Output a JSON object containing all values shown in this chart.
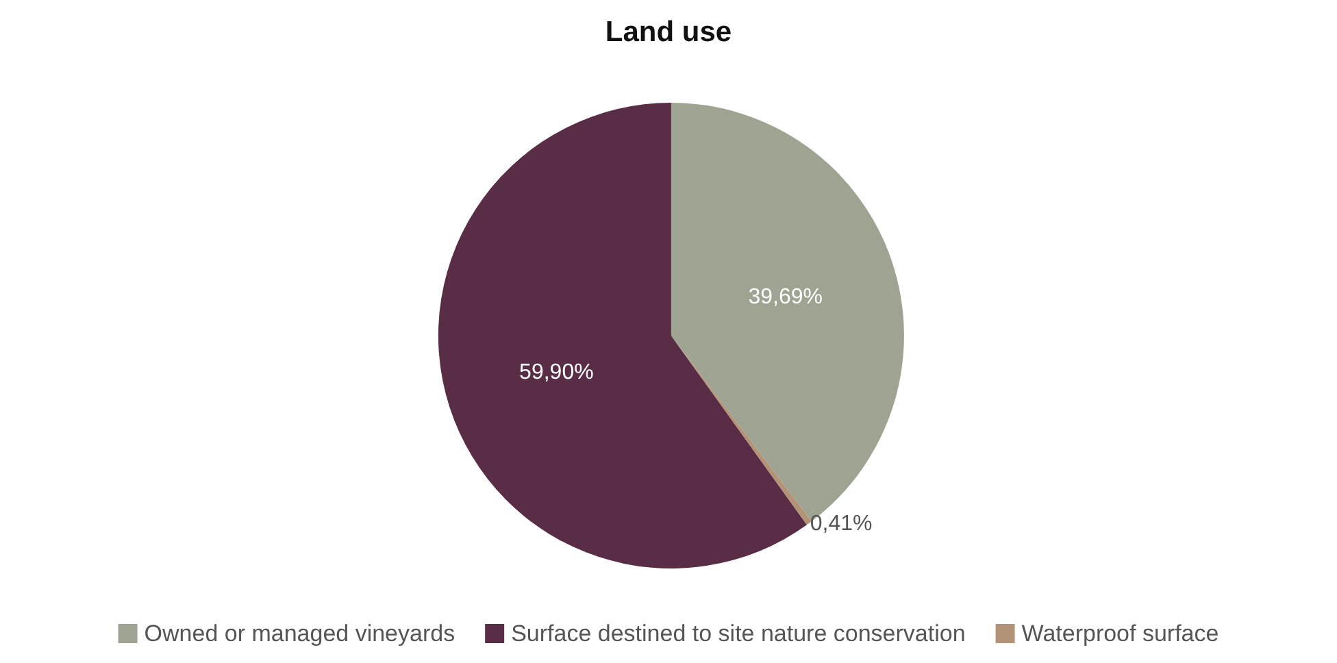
{
  "chart_data": {
    "type": "pie",
    "title": "Land use",
    "categories": [
      "Owned or managed vineyards",
      "Surface destined to site nature conservation",
      "Waterproof surface"
    ],
    "values": [
      39.69,
      59.9,
      0.41
    ],
    "colors": [
      "#9fa391",
      "#5a2d46",
      "#b39378"
    ],
    "value_labels": [
      "39,69%",
      "59,90%",
      "0,41%"
    ],
    "legend": "bottom"
  }
}
